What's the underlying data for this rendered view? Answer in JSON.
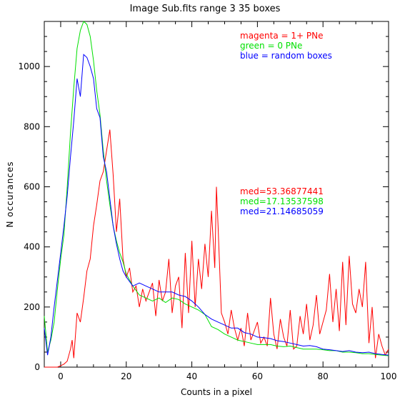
{
  "chart_data": {
    "type": "line",
    "title": "Image Sub.fits   range 3    35 boxes",
    "xlabel": "Counts in a pixel",
    "ylabel": "N occurances",
    "xlim": [
      -5,
      100
    ],
    "ylim": [
      0,
      1150
    ],
    "xticks": [
      0,
      20,
      40,
      60,
      80,
      100
    ],
    "yticks": [
      0,
      200,
      400,
      600,
      800,
      1000
    ],
    "grid": false,
    "annotations": {
      "legend": [
        {
          "text": "magenta = 1+ PNe",
          "color": "#ff0000"
        },
        {
          "text": "green = 0 PNe",
          "color": "#00e000"
        },
        {
          "text": "blue = random boxes",
          "color": "#0000ff"
        }
      ],
      "medians": [
        {
          "text": "med=53.36877441",
          "color": "#ff0000"
        },
        {
          "text": "med=17.13537598",
          "color": "#00e000"
        },
        {
          "text": "med=21.14685059",
          "color": "#0000ff"
        }
      ]
    },
    "series": [
      {
        "color": "#ff0000",
        "x": [
          -5,
          -3,
          -1,
          0,
          1,
          2,
          3,
          3.5,
          4,
          5,
          6,
          7,
          8,
          9,
          10,
          11,
          12,
          13,
          14,
          15,
          16,
          17,
          18,
          19,
          20,
          21,
          22,
          23,
          24,
          25,
          26,
          27,
          28,
          29,
          30,
          31,
          32,
          33,
          34,
          35,
          36,
          37,
          38,
          39,
          40,
          41,
          42,
          43,
          44,
          45,
          46,
          47,
          47.5,
          48,
          49,
          50,
          51,
          52,
          53,
          54,
          55,
          56,
          57,
          58,
          59,
          60,
          61,
          62,
          63,
          64,
          65,
          66,
          67,
          68,
          69,
          70,
          71,
          72,
          73,
          74,
          75,
          76,
          77,
          78,
          79,
          80,
          81,
          82,
          83,
          84,
          85,
          86,
          87,
          88,
          89,
          90,
          91,
          92,
          93,
          94,
          95,
          96,
          97,
          98,
          99,
          100
        ],
        "y": [
          0,
          0,
          0,
          5,
          10,
          20,
          60,
          90,
          30,
          180,
          150,
          230,
          320,
          360,
          470,
          540,
          620,
          650,
          720,
          790,
          640,
          450,
          560,
          360,
          300,
          330,
          250,
          270,
          200,
          260,
          220,
          250,
          280,
          170,
          290,
          220,
          250,
          360,
          180,
          270,
          300,
          130,
          380,
          180,
          420,
          200,
          360,
          260,
          410,
          300,
          520,
          330,
          600,
          470,
          180,
          150,
          110,
          190,
          130,
          90,
          130,
          70,
          180,
          90,
          120,
          150,
          80,
          100,
          70,
          230,
          110,
          60,
          160,
          100,
          70,
          190,
          60,
          70,
          170,
          110,
          210,
          90,
          140,
          240,
          110,
          150,
          190,
          310,
          150,
          260,
          120,
          350,
          140,
          370,
          210,
          180,
          260,
          200,
          350,
          80,
          200,
          30,
          110,
          70,
          40,
          60
        ],
        "y_note": ""
      },
      {
        "color": "#00e000",
        "x": [
          -5,
          -4,
          -3,
          -2,
          -1,
          0,
          1,
          2,
          3,
          4,
          5,
          6,
          7,
          8,
          9,
          10,
          11,
          12,
          13,
          14,
          15,
          16,
          17,
          18,
          19,
          20,
          22,
          24,
          26,
          28,
          30,
          32,
          34,
          36,
          38,
          40,
          42,
          44,
          46,
          48,
          50,
          52,
          54,
          56,
          58,
          60,
          62,
          64,
          66,
          68,
          70,
          72,
          74,
          76,
          78,
          80,
          82,
          84,
          86,
          88,
          90,
          92,
          94,
          96,
          98,
          100
        ],
        "y": [
          170,
          50,
          90,
          150,
          260,
          360,
          440,
          600,
          780,
          930,
          1060,
          1120,
          1150,
          1140,
          1100,
          1020,
          920,
          840,
          720,
          620,
          540,
          470,
          420,
          380,
          350,
          310,
          270,
          240,
          230,
          220,
          230,
          215,
          230,
          225,
          210,
          200,
          190,
          175,
          135,
          125,
          110,
          100,
          90,
          85,
          80,
          75,
          75,
          75,
          70,
          68,
          70,
          65,
          60,
          60,
          60,
          58,
          55,
          55,
          50,
          50,
          48,
          45,
          45,
          42,
          40,
          38
        ]
      },
      {
        "color": "#0000ff",
        "x": [
          -5,
          -4,
          -3,
          -2,
          -1,
          0,
          1,
          2,
          3,
          4,
          5,
          6,
          7,
          8,
          9,
          10,
          11,
          12,
          13,
          14,
          15,
          16,
          17,
          18,
          19,
          20,
          22,
          24,
          26,
          28,
          30,
          32,
          34,
          36,
          38,
          40,
          42,
          44,
          46,
          48,
          50,
          52,
          54,
          56,
          58,
          60,
          62,
          64,
          66,
          68,
          70,
          72,
          74,
          76,
          78,
          80,
          82,
          84,
          86,
          88,
          90,
          92,
          94,
          96,
          98,
          100
        ],
        "y": [
          130,
          40,
          100,
          200,
          290,
          380,
          470,
          570,
          700,
          820,
          960,
          900,
          1040,
          1030,
          1000,
          960,
          860,
          830,
          700,
          650,
          560,
          470,
          410,
          360,
          320,
          300,
          270,
          280,
          270,
          260,
          250,
          250,
          250,
          240,
          235,
          220,
          200,
          175,
          160,
          150,
          140,
          130,
          130,
          115,
          110,
          100,
          98,
          95,
          88,
          85,
          80,
          75,
          70,
          72,
          68,
          60,
          58,
          55,
          52,
          55,
          50,
          48,
          50,
          45,
          42,
          40
        ]
      }
    ]
  }
}
